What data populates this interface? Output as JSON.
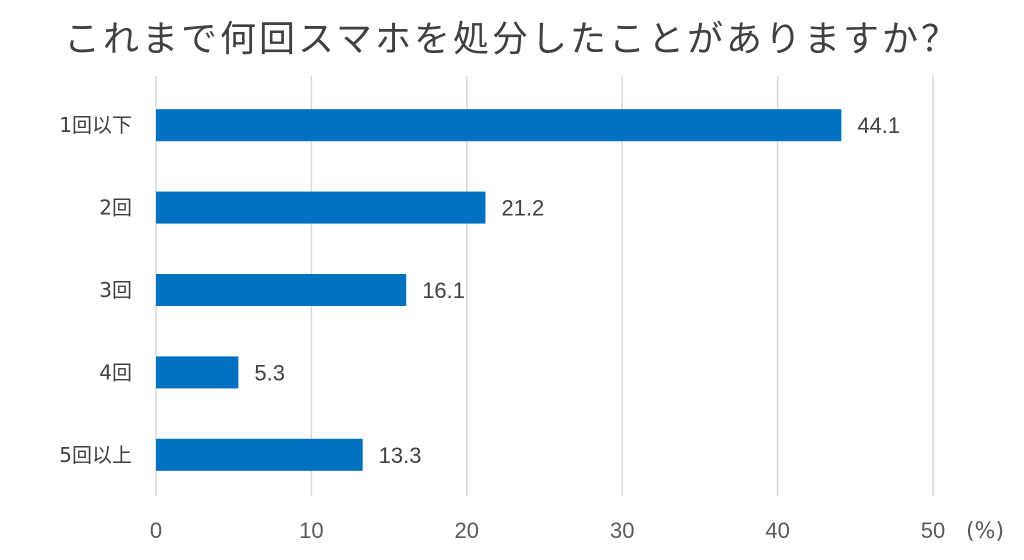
{
  "chart_data": {
    "type": "bar",
    "orientation": "horizontal",
    "title": "これまで何回スマホを処分したことがありますか？",
    "categories": [
      "1回以下",
      "2回",
      "3回",
      "4回",
      "5回以上"
    ],
    "values": [
      44.1,
      21.2,
      16.1,
      5.3,
      13.3
    ],
    "value_labels": [
      "44.1",
      "21.2",
      "16.1",
      "5.3",
      "13.3"
    ],
    "x_ticks": [
      "0",
      "10",
      "20",
      "30",
      "40",
      "50"
    ],
    "unit": "(%)",
    "xlim": [
      0,
      50
    ],
    "grid": true,
    "legend": "none",
    "bar_color": "#0070C0",
    "grid_color": "#D9D9D9"
  }
}
